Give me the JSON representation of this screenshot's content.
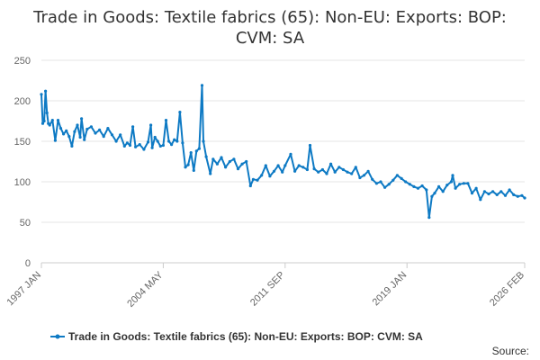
{
  "chart_data": {
    "type": "line",
    "title": "Trade in Goods: Textile fabrics (65): Non-EU: Exports: BOP: CVM: SA",
    "title_lines": [
      "Trade in Goods: Textile fabrics (65): Non-EU: Exports: BOP:",
      "CVM: SA"
    ],
    "xlabel": "",
    "ylabel": "",
    "ylim": [
      0,
      250
    ],
    "y_ticks": [
      0,
      50,
      100,
      150,
      200,
      250
    ],
    "x_range": [
      "1997-01",
      "2026-02"
    ],
    "x_ticks": [
      {
        "label": "1997 JAN",
        "date": "1997-01"
      },
      {
        "label": "2004 MAY",
        "date": "2004-05"
      },
      {
        "label": "2011 SEP",
        "date": "2011-09"
      },
      {
        "label": "2019 JAN",
        "date": "2019-01"
      },
      {
        "label": "2026 FEB",
        "date": "2026-02"
      }
    ],
    "grid": "horizontal",
    "legend_position": "bottom",
    "color": "#0e7ac4",
    "series": [
      {
        "name": "Trade in Goods: Textile fabrics (65): Non-EU: Exports: BOP: CVM: SA",
        "points": [
          [
            "1997-01",
            208
          ],
          [
            "1997-02",
            172
          ],
          [
            "1997-03",
            175
          ],
          [
            "1997-04",
            212
          ],
          [
            "1997-05",
            185
          ],
          [
            "1997-06",
            172
          ],
          [
            "1997-07",
            170
          ],
          [
            "1997-09",
            176
          ],
          [
            "1997-11",
            151
          ],
          [
            "1998-01",
            176
          ],
          [
            "1998-03",
            166
          ],
          [
            "1998-05",
            159
          ],
          [
            "1998-07",
            163
          ],
          [
            "1998-09",
            156
          ],
          [
            "1998-11",
            144
          ],
          [
            "1999-01",
            162
          ],
          [
            "1999-03",
            170
          ],
          [
            "1999-05",
            155
          ],
          [
            "1999-06",
            178
          ],
          [
            "1999-08",
            152
          ],
          [
            "1999-10",
            165
          ],
          [
            "2000-01",
            168
          ],
          [
            "2000-04",
            160
          ],
          [
            "2000-07",
            164
          ],
          [
            "2000-10",
            156
          ],
          [
            "2001-01",
            166
          ],
          [
            "2001-04",
            158
          ],
          [
            "2001-07",
            150
          ],
          [
            "2001-10",
            158
          ],
          [
            "2002-01",
            144
          ],
          [
            "2002-03",
            148
          ],
          [
            "2002-05",
            145
          ],
          [
            "2002-07",
            168
          ],
          [
            "2002-09",
            143
          ],
          [
            "2002-12",
            146
          ],
          [
            "2003-03",
            140
          ],
          [
            "2003-06",
            149
          ],
          [
            "2003-08",
            170
          ],
          [
            "2003-09",
            142
          ],
          [
            "2003-11",
            155
          ],
          [
            "2004-01",
            150
          ],
          [
            "2004-03",
            144
          ],
          [
            "2004-05",
            145
          ],
          [
            "2004-07",
            176
          ],
          [
            "2004-09",
            150
          ],
          [
            "2004-11",
            146
          ],
          [
            "2005-01",
            152
          ],
          [
            "2005-03",
            150
          ],
          [
            "2005-05",
            186
          ],
          [
            "2005-07",
            148
          ],
          [
            "2005-09",
            118
          ],
          [
            "2005-11",
            121
          ],
          [
            "2006-01",
            136
          ],
          [
            "2006-03",
            114
          ],
          [
            "2006-05",
            138
          ],
          [
            "2006-07",
            141
          ],
          [
            "2006-09",
            219
          ],
          [
            "2006-10",
            150
          ],
          [
            "2006-12",
            131
          ],
          [
            "2007-03",
            110
          ],
          [
            "2007-05",
            128
          ],
          [
            "2007-08",
            122
          ],
          [
            "2007-11",
            130
          ],
          [
            "2008-02",
            118
          ],
          [
            "2008-05",
            125
          ],
          [
            "2008-08",
            128
          ],
          [
            "2008-11",
            116
          ],
          [
            "2009-02",
            122
          ],
          [
            "2009-05",
            125
          ],
          [
            "2009-08",
            95
          ],
          [
            "2009-10",
            103
          ],
          [
            "2010-01",
            102
          ],
          [
            "2010-04",
            108
          ],
          [
            "2010-07",
            120
          ],
          [
            "2010-10",
            107
          ],
          [
            "2011-01",
            113
          ],
          [
            "2011-04",
            120
          ],
          [
            "2011-07",
            112
          ],
          [
            "2011-09",
            120
          ],
          [
            "2012-01",
            134
          ],
          [
            "2012-04",
            113
          ],
          [
            "2012-07",
            120
          ],
          [
            "2012-10",
            118
          ],
          [
            "2013-01",
            115
          ],
          [
            "2013-03",
            145
          ],
          [
            "2013-06",
            116
          ],
          [
            "2013-09",
            112
          ],
          [
            "2013-12",
            115
          ],
          [
            "2014-03",
            110
          ],
          [
            "2014-06",
            122
          ],
          [
            "2014-09",
            112
          ],
          [
            "2014-12",
            118
          ],
          [
            "2015-03",
            115
          ],
          [
            "2015-06",
            112
          ],
          [
            "2015-09",
            110
          ],
          [
            "2015-12",
            118
          ],
          [
            "2016-03",
            105
          ],
          [
            "2016-06",
            108
          ],
          [
            "2016-09",
            113
          ],
          [
            "2016-12",
            103
          ],
          [
            "2017-03",
            98
          ],
          [
            "2017-06",
            100
          ],
          [
            "2017-09",
            93
          ],
          [
            "2017-12",
            97
          ],
          [
            "2018-03",
            102
          ],
          [
            "2018-06",
            108
          ],
          [
            "2018-09",
            104
          ],
          [
            "2018-12",
            100
          ],
          [
            "2019-03",
            97
          ],
          [
            "2019-06",
            94
          ],
          [
            "2019-09",
            92
          ],
          [
            "2019-12",
            95
          ],
          [
            "2020-03",
            90
          ],
          [
            "2020-05",
            56
          ],
          [
            "2020-07",
            82
          ],
          [
            "2020-09",
            86
          ],
          [
            "2020-12",
            94
          ],
          [
            "2021-03",
            88
          ],
          [
            "2021-06",
            96
          ],
          [
            "2021-09",
            100
          ],
          [
            "2021-10",
            108
          ],
          [
            "2021-12",
            92
          ],
          [
            "2022-03",
            97
          ],
          [
            "2022-06",
            98
          ],
          [
            "2022-09",
            98
          ],
          [
            "2022-12",
            86
          ],
          [
            "2023-03",
            92
          ],
          [
            "2023-06",
            78
          ],
          [
            "2023-09",
            88
          ],
          [
            "2023-12",
            85
          ],
          [
            "2024-03",
            88
          ],
          [
            "2024-06",
            84
          ],
          [
            "2024-09",
            88
          ],
          [
            "2024-12",
            83
          ],
          [
            "2025-03",
            90
          ],
          [
            "2025-06",
            84
          ],
          [
            "2025-09",
            82
          ],
          [
            "2025-12",
            83
          ],
          [
            "2026-02",
            80
          ]
        ]
      }
    ],
    "source_label": "Source:"
  }
}
